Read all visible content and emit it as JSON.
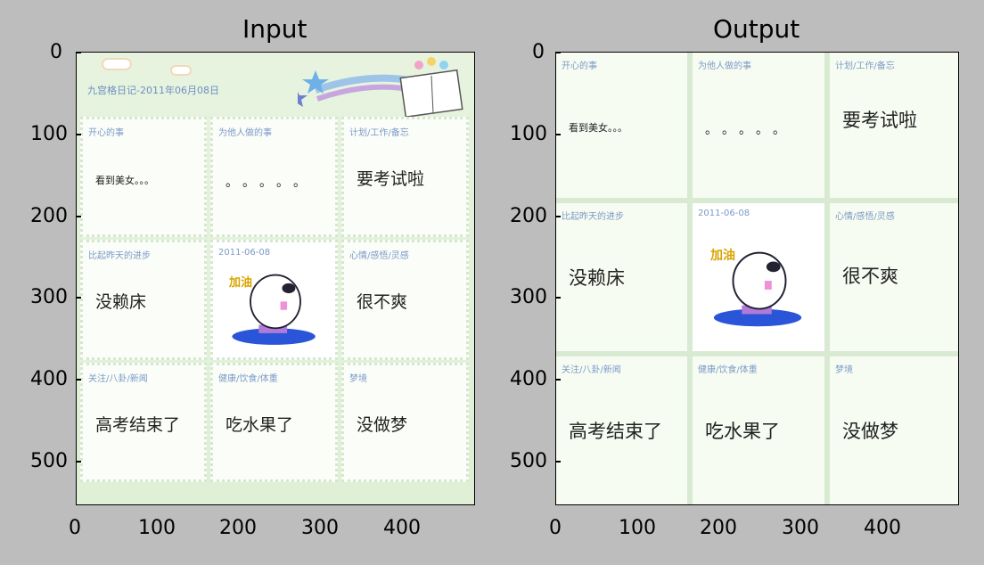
{
  "titles": {
    "input": "Input",
    "output": "Output"
  },
  "axes": {
    "y_ticks": [
      "0",
      "100",
      "200",
      "300",
      "400",
      "500"
    ],
    "x_ticks": [
      "0",
      "100",
      "200",
      "300",
      "400"
    ]
  },
  "diary": {
    "header": "九宫格日记-2011年06月08日",
    "date_label": "2011-06-08",
    "sticker_text": "加油",
    "cells": [
      {
        "label": "开心的事",
        "content": "看到美女。。。"
      },
      {
        "label": "为他人做的事",
        "content": "。。。。。"
      },
      {
        "label": "计划/工作/备忘",
        "content": "要考试啦"
      },
      {
        "label": "比起昨天的进步",
        "content": "没赖床"
      },
      {
        "label": "2011-06-08",
        "content": ""
      },
      {
        "label": "心情/感悟/灵感",
        "content": "很不爽"
      },
      {
        "label": "关注/八卦/新闻",
        "content": "高考结束了"
      },
      {
        "label": "健康/饮食/体重",
        "content": "吃水果了"
      },
      {
        "label": "梦境",
        "content": "没做梦"
      }
    ]
  }
}
